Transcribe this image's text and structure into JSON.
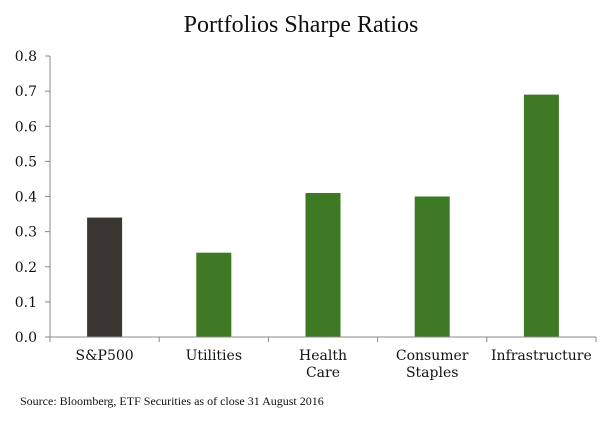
{
  "chart_data": {
    "type": "bar",
    "title": "Portfolios Sharpe Ratios",
    "categories": [
      "S&P500",
      "Utilities",
      "Health\nCare",
      "Consumer\nStaples",
      "Infrastructure"
    ],
    "values": [
      0.34,
      0.24,
      0.41,
      0.4,
      0.69
    ],
    "bar_colors": [
      "#3a3632",
      "#3d7a23",
      "#3d7a23",
      "#3d7a23",
      "#3d7a23"
    ],
    "ylim": [
      0,
      0.8
    ],
    "yticks": [
      "0.0",
      "0.1",
      "0.2",
      "0.3",
      "0.4",
      "0.5",
      "0.6",
      "0.7",
      "0.8"
    ],
    "grid": false,
    "xlabel": "",
    "ylabel": ""
  },
  "footer": {
    "source": "Source: Bloomberg, ETF Securities as of close 31 August 2016"
  }
}
